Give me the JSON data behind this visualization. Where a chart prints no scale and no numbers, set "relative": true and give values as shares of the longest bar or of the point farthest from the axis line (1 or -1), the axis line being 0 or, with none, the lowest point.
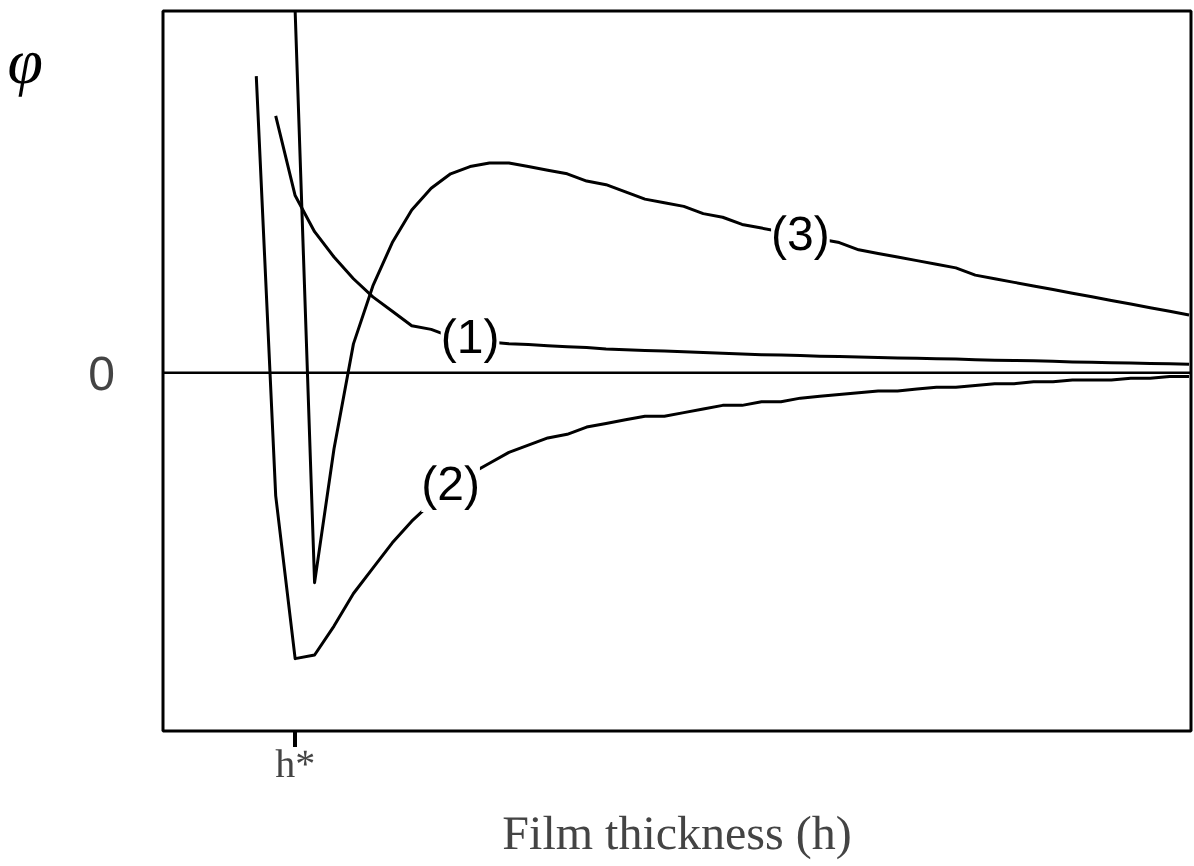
{
  "chart_data": {
    "type": "line",
    "relative": true,
    "xlabel": "Film thickness (h)",
    "ylabel": "φ",
    "grid": false,
    "marker": "none",
    "line_style": "solid",
    "annotations": [
      "h*"
    ],
    "categories": [
      null,
      null,
      null,
      null,
      null,
      null,
      null,
      null,
      null,
      null,
      null,
      null,
      null,
      null,
      null,
      null,
      null,
      null,
      null,
      null,
      null,
      null,
      null,
      null,
      null,
      null,
      null,
      null,
      null,
      null,
      null,
      null,
      null,
      null,
      null,
      null,
      null,
      null,
      null,
      null,
      null,
      null,
      null,
      null,
      null,
      null,
      null,
      null,
      null,
      null,
      null,
      null,
      null
    ],
    "ref_lines": [
      {
        "axis": "y",
        "value": 0,
        "label": "0",
        "color": "#000000"
      }
    ],
    "series": [
      {
        "name": "(1)",
        "color": "#000000",
        "values": [
          null,
          null,
          null,
          null,
          null,
          0.71,
          0.49,
          0.39,
          0.32,
          0.26,
          0.21,
          0.17,
          0.13,
          0.12,
          0.1,
          0.095,
          0.085,
          0.08,
          0.078,
          0.075,
          0.072,
          0.07,
          0.066,
          0.064,
          0.062,
          0.06,
          0.058,
          0.056,
          0.054,
          0.052,
          0.05,
          0.049,
          0.048,
          0.046,
          0.045,
          0.044,
          0.042,
          0.041,
          0.04,
          0.039,
          0.038,
          0.036,
          0.035,
          0.034,
          0.033,
          0.032,
          0.03,
          0.029,
          0.028,
          0.027,
          0.026,
          0.025,
          0.024
        ]
      },
      {
        "name": "(2)",
        "color": "#000000",
        "values": [
          null,
          null,
          null,
          null,
          0.82,
          -0.34,
          -0.79,
          -0.78,
          -0.7,
          -0.61,
          -0.54,
          -0.47,
          -0.41,
          -0.36,
          -0.31,
          -0.28,
          -0.25,
          -0.22,
          -0.2,
          -0.18,
          -0.17,
          -0.15,
          -0.14,
          -0.13,
          -0.12,
          -0.12,
          -0.11,
          -0.1,
          -0.09,
          -0.09,
          -0.08,
          -0.08,
          -0.07,
          -0.065,
          -0.06,
          -0.055,
          -0.05,
          -0.05,
          -0.045,
          -0.04,
          -0.04,
          -0.035,
          -0.03,
          -0.03,
          -0.025,
          -0.025,
          -0.02,
          -0.02,
          -0.02,
          -0.015,
          -0.015,
          -0.01,
          -0.01
        ]
      },
      {
        "name": "(3)",
        "color": "#000000",
        "values": [
          null,
          null,
          null,
          null,
          null,
          null,
          1,
          -0.58,
          -0.21,
          0.08,
          0.24,
          0.36,
          0.45,
          0.51,
          0.55,
          0.57,
          0.58,
          0.58,
          0.57,
          0.56,
          0.55,
          0.53,
          0.52,
          0.5,
          0.48,
          0.47,
          0.46,
          0.44,
          0.43,
          0.41,
          0.4,
          0.39,
          0.38,
          0.37,
          0.36,
          0.34,
          0.33,
          0.32,
          0.31,
          0.3,
          0.29,
          0.27,
          0.26,
          0.25,
          0.24,
          0.23,
          0.22,
          0.21,
          0.2,
          0.19,
          0.18,
          0.17,
          0.16
        ]
      }
    ]
  }
}
